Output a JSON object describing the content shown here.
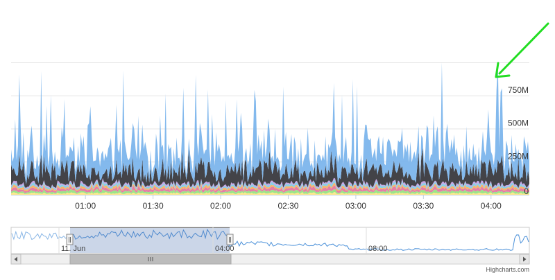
{
  "chart_data": {
    "type": "area",
    "stacked": true,
    "title": "",
    "xlabel": "",
    "ylabel": "",
    "x_range": [
      "00:27",
      "04:17"
    ],
    "y_range": [
      0,
      1000000000
    ],
    "x_ticks": [
      "01:00",
      "01:30",
      "02:00",
      "02:30",
      "03:00",
      "03:30",
      "04:00"
    ],
    "y_ticks": [
      "0",
      "250M",
      "500M",
      "750M"
    ],
    "y_tick_values": [
      0,
      250000000,
      500000000,
      750000000
    ],
    "grid": true,
    "legend": "none",
    "series_colors": [
      "#ffe88c",
      "#9be58a",
      "#e47ea6",
      "#f7b36b",
      "#85d0e8",
      "#c7a6e6",
      "#434348",
      "#7cb5ec"
    ],
    "approx_levels_M": {
      "base_colored_layers": 120,
      "dark_series_typical": 240,
      "blue_series_typical": 420,
      "blue_series_peaks": 700,
      "max_spike_at_04_04": 880
    },
    "navigator": {
      "labels": [
        "11. Jun",
        "04:00",
        "08:00"
      ],
      "selected_range": [
        "00:27",
        "04:17"
      ]
    },
    "annotation": {
      "type": "arrow",
      "color": "#22dd22",
      "points_to": "04:04 spike"
    },
    "credits": "Highcharts.com"
  }
}
